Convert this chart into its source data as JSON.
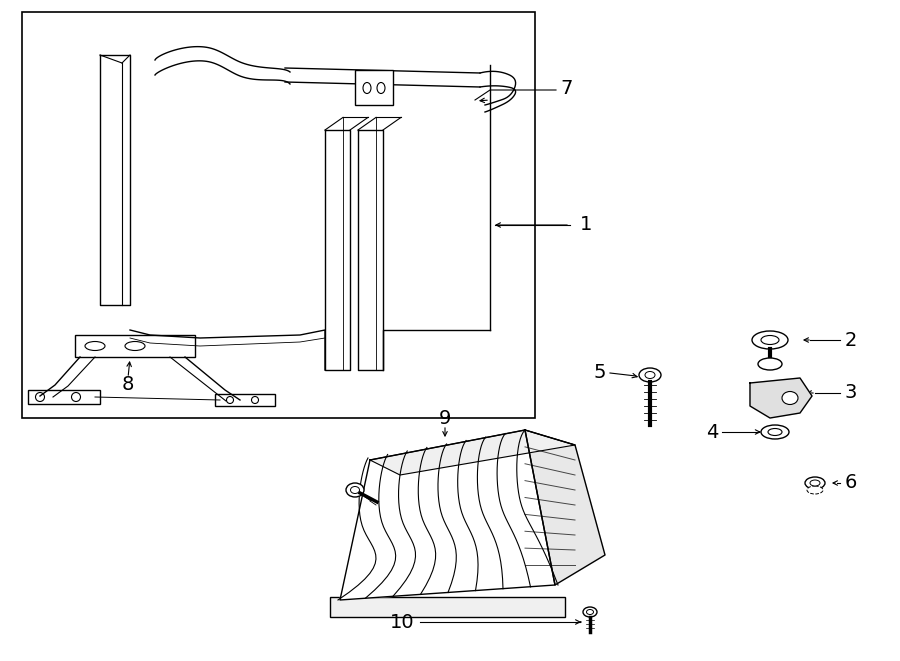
{
  "bg_color": "#ffffff",
  "line_color": "#000000",
  "lw": 1.0,
  "figsize": [
    9.0,
    6.61
  ],
  "dpi": 100
}
